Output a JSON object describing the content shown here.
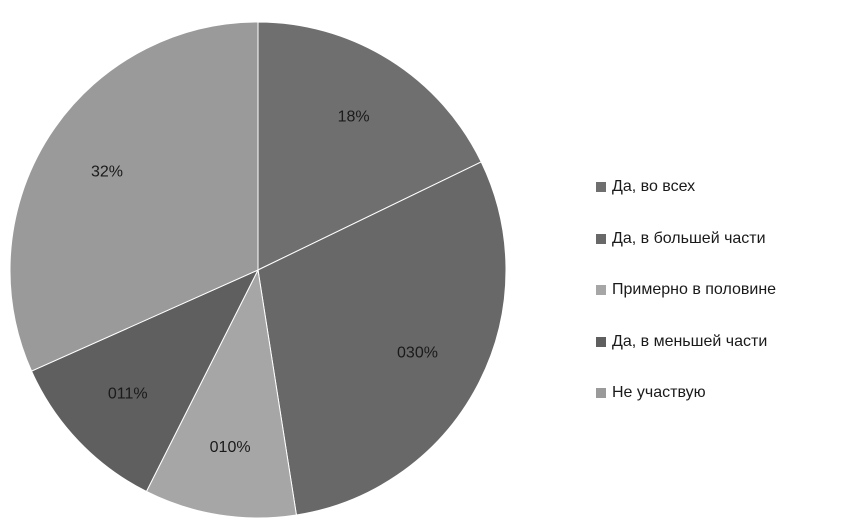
{
  "chart_data": {
    "type": "pie",
    "title": "",
    "slices": [
      {
        "legend": "Да, во всех",
        "label": "18%",
        "value": 18,
        "color": "#6f6f6f"
      },
      {
        "legend": "Да, в большей части",
        "label": "030%",
        "value": 30,
        "color": "#686868"
      },
      {
        "legend": "Примерно в половине",
        "label": "010%",
        "value": 10,
        "color": "#a6a6a6"
      },
      {
        "legend": "Да, в меньшей части",
        "label": "011%",
        "value": 11,
        "color": "#5f5f5f"
      },
      {
        "legend": "Не участвую",
        "label": "32%",
        "value": 32,
        "color": "#9a9a9a"
      }
    ],
    "start_angle": "12 o'clock",
    "direction": "clockwise",
    "legend_position": "right"
  }
}
